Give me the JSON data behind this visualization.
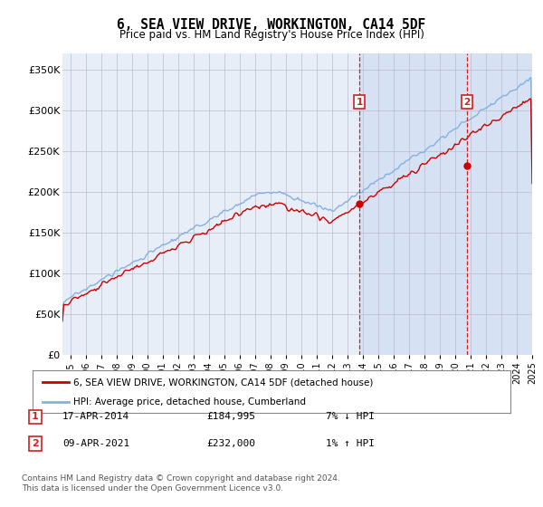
{
  "title": "6, SEA VIEW DRIVE, WORKINGTON, CA14 5DF",
  "subtitle": "Price paid vs. HM Land Registry's House Price Index (HPI)",
  "ylabel_ticks": [
    "£0",
    "£50K",
    "£100K",
    "£150K",
    "£200K",
    "£250K",
    "£300K",
    "£350K"
  ],
  "ytick_values": [
    0,
    50000,
    100000,
    150000,
    200000,
    250000,
    300000,
    350000
  ],
  "ylim": [
    0,
    370000
  ],
  "xlim_start": 1995.0,
  "xlim_end": 2025.5,
  "background_color": "#ffffff",
  "plot_bg_color": "#e8eef8",
  "plot_bg_color2": "#dde8f5",
  "grid_color": "#bbbbcc",
  "hpi_line_color": "#85b0e0",
  "price_line_color": "#cc0000",
  "annotation_box_color": "#cc2222",
  "vline_color": "#cc2222",
  "transaction1_x": 2014.29,
  "transaction1_y": 184995,
  "transaction1_label": "1",
  "transaction1_date": "17-APR-2014",
  "transaction1_price": "£184,995",
  "transaction1_hpi": "7% ↓ HPI",
  "transaction2_x": 2021.27,
  "transaction2_y": 232000,
  "transaction2_label": "2",
  "transaction2_date": "09-APR-2021",
  "transaction2_price": "£232,000",
  "transaction2_hpi": "1% ↑ HPI",
  "legend_label1": "6, SEA VIEW DRIVE, WORKINGTON, CA14 5DF (detached house)",
  "legend_label2": "HPI: Average price, detached house, Cumberland",
  "footer1": "Contains HM Land Registry data © Crown copyright and database right 2024.",
  "footer2": "This data is licensed under the Open Government Licence v3.0."
}
